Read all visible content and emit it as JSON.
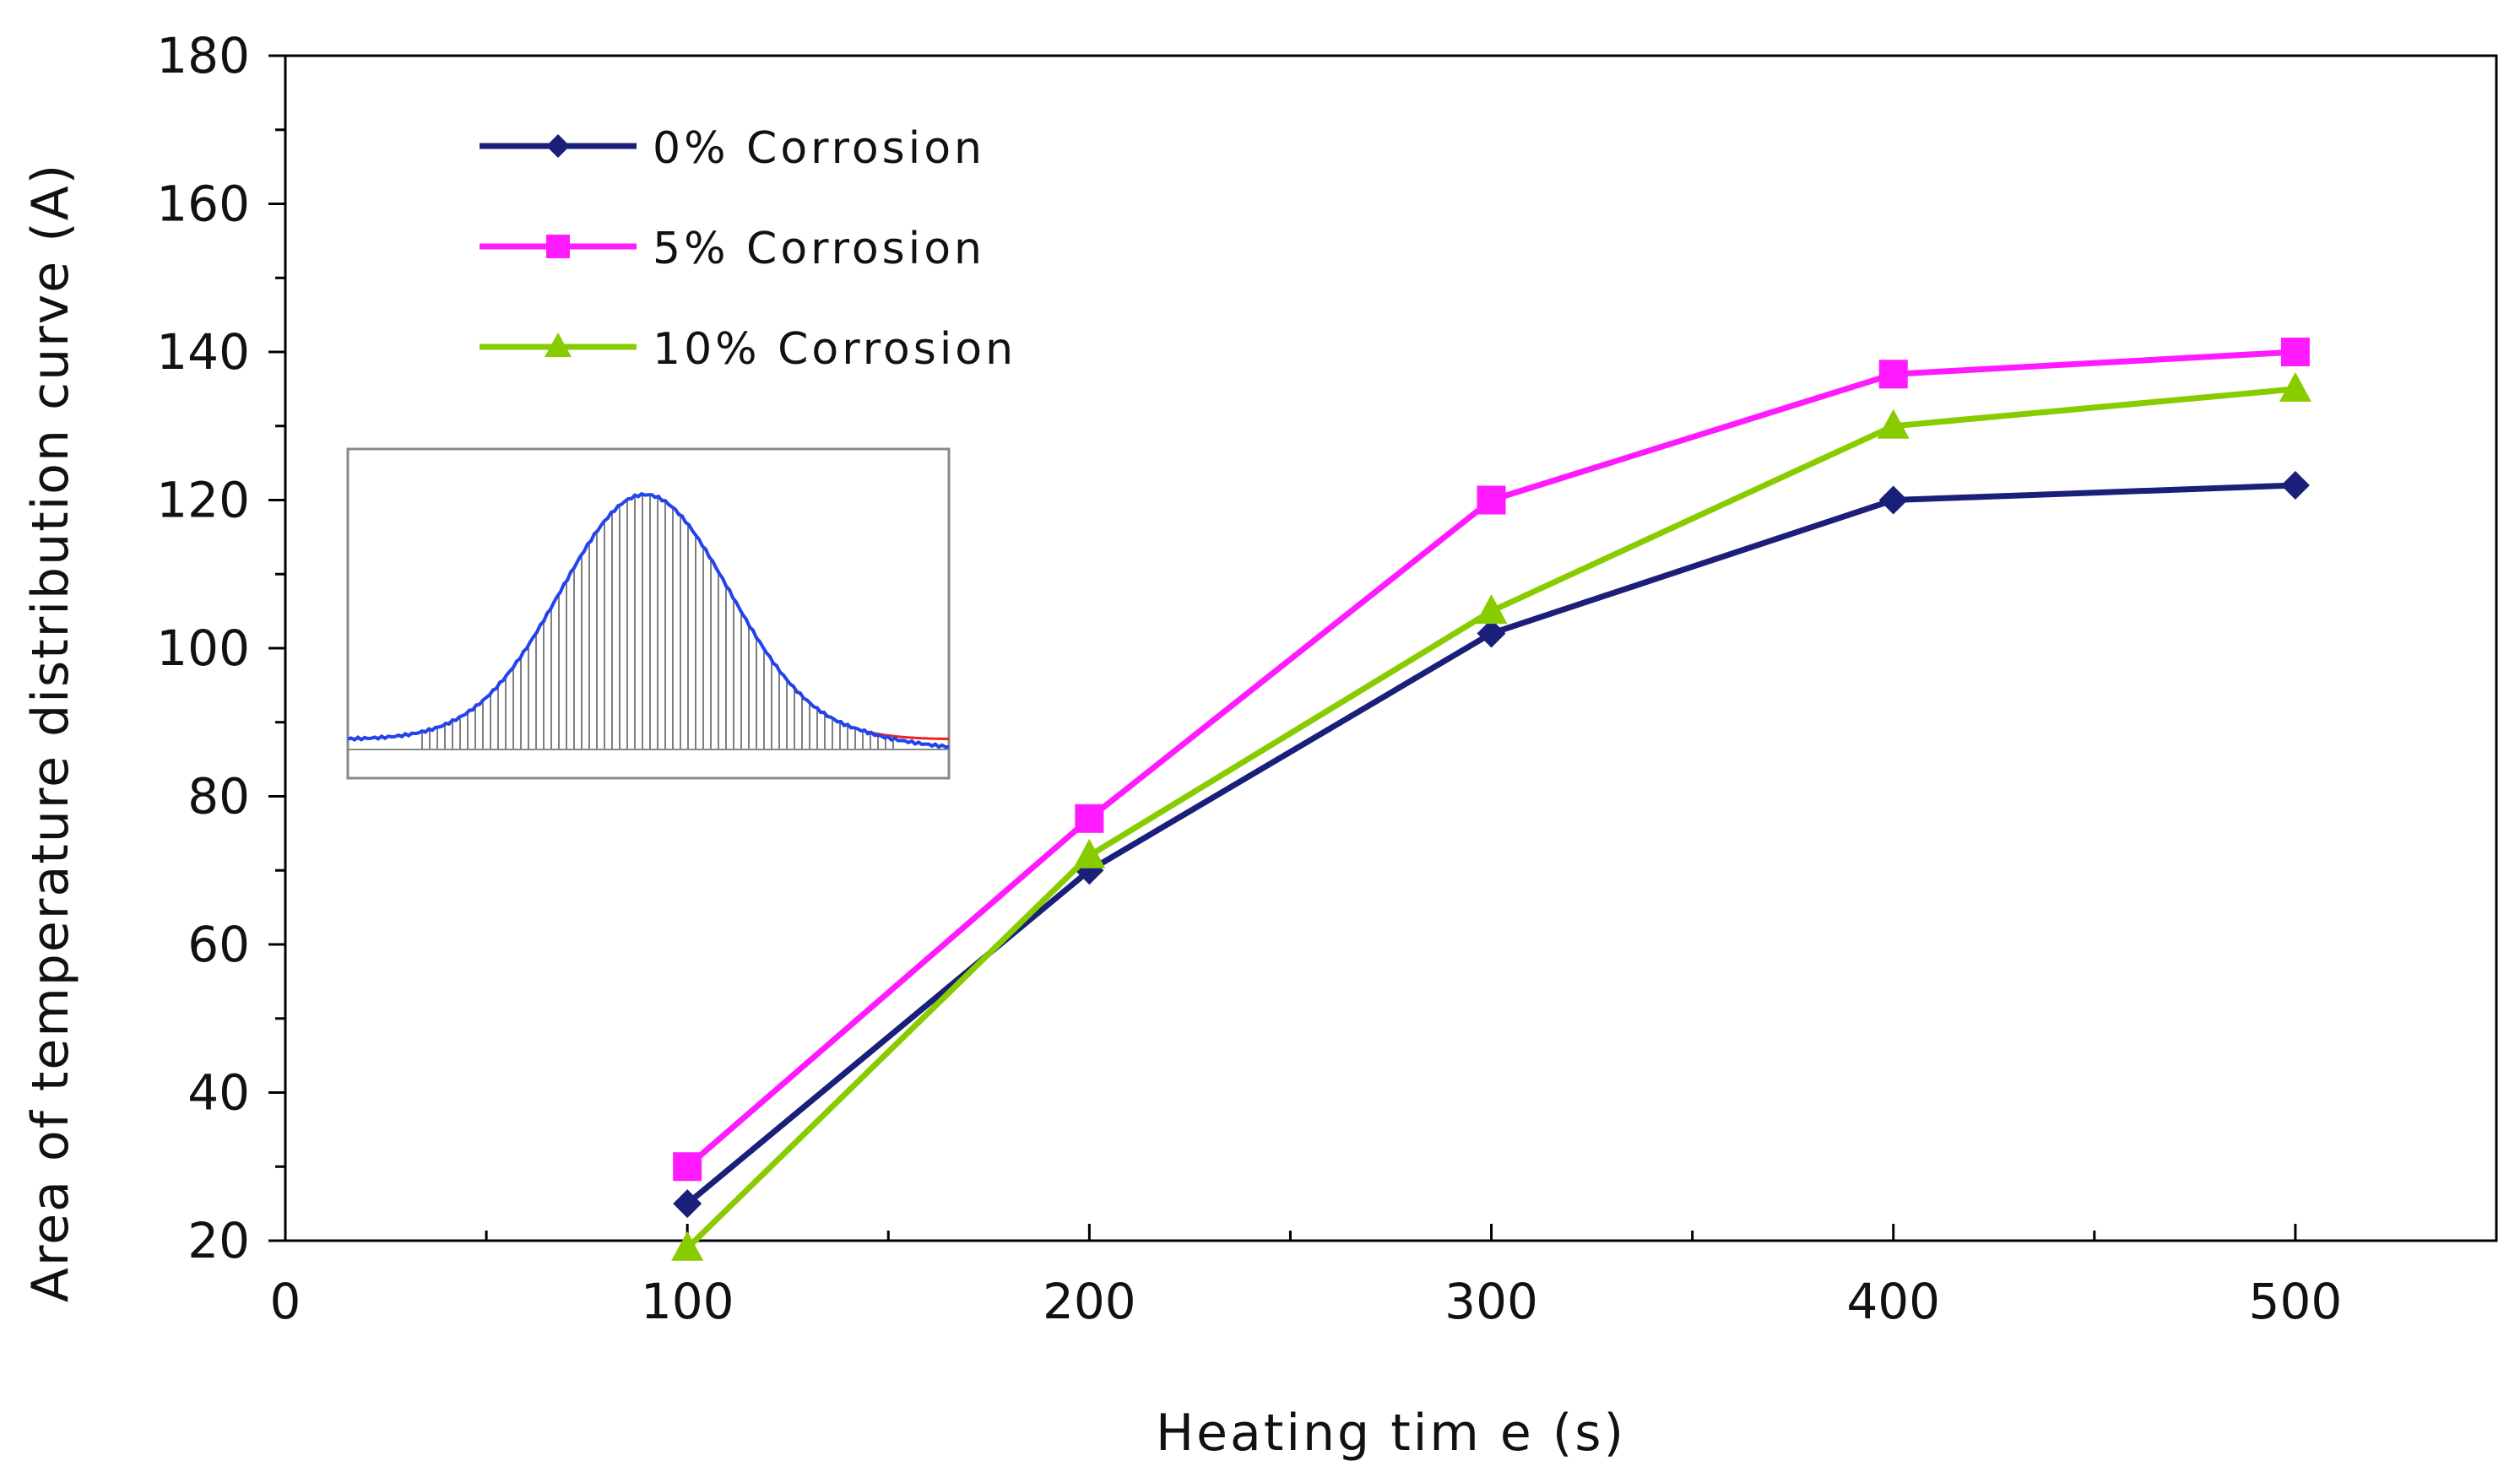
{
  "chart_data": {
    "type": "line",
    "title": "",
    "xlabel": "Heating tim e (s)",
    "ylabel": "Area of temperature distribution curve (A)",
    "xlim": [
      0,
      550
    ],
    "ylim": [
      20,
      180
    ],
    "xticks": [
      0,
      100,
      200,
      300,
      400,
      500
    ],
    "xtick_labels": [
      "0",
      "100",
      "200",
      "300",
      "400",
      "500"
    ],
    "yticks": [
      20,
      40,
      60,
      80,
      100,
      120,
      140,
      160,
      180
    ],
    "ytick_labels": [
      "20",
      "40",
      "60",
      "80",
      "100",
      "120",
      "140",
      "160",
      "180"
    ],
    "grid": false,
    "legend_position": "top-left",
    "x": [
      100,
      200,
      300,
      400,
      500
    ],
    "series": [
      {
        "name": "0% Corrosion",
        "values": [
          25,
          70,
          102,
          120,
          122
        ],
        "color": "#1a1f7a",
        "marker": "diamond"
      },
      {
        "name": "5% Corrosion",
        "values": [
          30,
          77,
          120,
          137,
          140
        ],
        "color": "#ff1aff",
        "marker": "square"
      },
      {
        "name": "10% Corrosion",
        "values": [
          19,
          72,
          105,
          130,
          135
        ],
        "color": "#88cc00",
        "marker": "triangle"
      }
    ],
    "inset": {
      "description": "Gaussian temperature distribution curve with shaded area",
      "curve_color": "#2244ee",
      "fit_color": "#ee2222",
      "fill_line_color": "#555555"
    }
  }
}
